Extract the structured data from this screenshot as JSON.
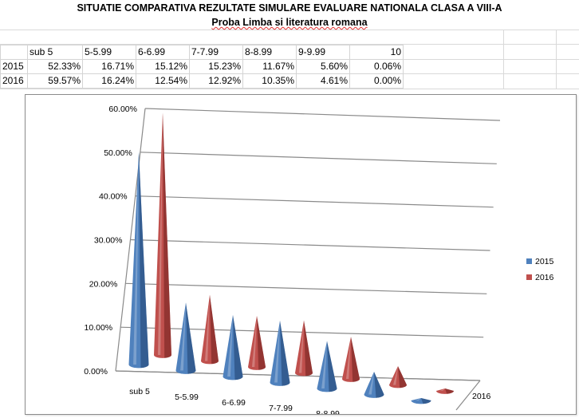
{
  "sheet": {
    "title": "SITUATIE COMPARATIVA REZULTATE SIMULARE EVALUARE NATIONALA CLASA A VIII-A",
    "subtitle": "Proba Limba si literatura romana",
    "header_row": [
      "",
      "sub 5",
      "5-5.99",
      "6-6.99",
      "7-7.99",
      "8-8.99",
      "9-9.99",
      "10"
    ],
    "rows": [
      {
        "year": "2015",
        "cells": [
          "52.33%",
          "16.71%",
          "15.12%",
          "15.23%",
          "11.67%",
          "5.60%",
          "0.06%"
        ]
      },
      {
        "year": "2016",
        "cells": [
          "59.57%",
          "16.24%",
          "12.54%",
          "12.92%",
          "10.35%",
          "4.61%",
          "0.00%"
        ]
      }
    ]
  },
  "chart_data": {
    "type": "bar",
    "style": "3d-cone",
    "categories": [
      "sub 5",
      "5-5.99",
      "6-6.99",
      "7-7.99",
      "8-8.99",
      "9-9.99",
      "10"
    ],
    "series": [
      {
        "name": "2015",
        "color": "#4f81bd",
        "values": [
          52.33,
          16.71,
          15.12,
          15.23,
          11.67,
          5.6,
          0.06
        ]
      },
      {
        "name": "2016",
        "color": "#c0504d",
        "values": [
          59.57,
          16.24,
          12.54,
          12.92,
          10.35,
          4.61,
          0.0
        ]
      }
    ],
    "y_ticks": [
      "0.00%",
      "10.00%",
      "20.00%",
      "30.00%",
      "40.00%",
      "50.00%",
      "60.00%"
    ],
    "ylim": [
      0,
      60
    ],
    "depth_label": "2016",
    "legend": "right",
    "grid": true
  }
}
